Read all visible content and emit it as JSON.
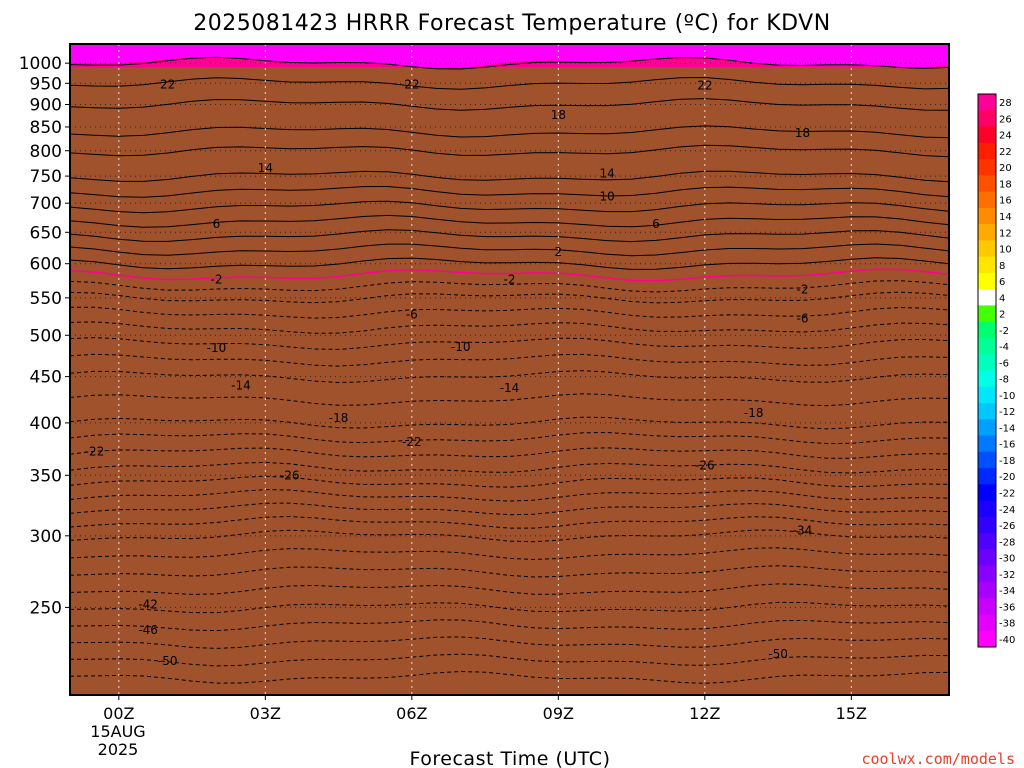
{
  "chart_data": {
    "type": "heatmap",
    "title": "2025081423 HRRR Forecast Temperature (ºC) for KDVN",
    "xlabel": "Forecast Time (UTC)",
    "ylabel": "",
    "x_ticks": [
      {
        "label": "00Z",
        "hour": 0
      },
      {
        "label": "03Z",
        "hour": 3
      },
      {
        "label": "06Z",
        "hour": 6
      },
      {
        "label": "09Z",
        "hour": 9
      },
      {
        "label": "12Z",
        "hour": 12
      },
      {
        "label": "15Z",
        "hour": 15
      }
    ],
    "date_lines": [
      "15AUG",
      "2025"
    ],
    "xlim": [
      -1,
      17
    ],
    "y_ticks": [
      250,
      300,
      350,
      400,
      450,
      500,
      550,
      600,
      650,
      700,
      750,
      800,
      850,
      900,
      950,
      1000
    ],
    "ylim": [
      1050,
      200
    ],
    "surface_pressure": 990,
    "colorbar_labels": [
      "28",
      "26",
      "24",
      "22",
      "20",
      "18",
      "16",
      "14",
      "12",
      "10",
      "8",
      "6",
      "4",
      "2",
      "-2",
      "-4",
      "-6",
      "-8",
      "-10",
      "-12",
      "-14",
      "-16",
      "-18",
      "-20",
      "-22",
      "-24",
      "-26",
      "-28",
      "-30",
      "-32",
      "-34",
      "-36",
      "-38",
      "-40"
    ],
    "colors": {
      "bands": [
        "#ff00ff",
        "#e200ff",
        "#c800ff",
        "#a800ff",
        "#8a00ff",
        "#6c00ff",
        "#5000ff",
        "#3200ff",
        "#1c00ff",
        "#0000ff",
        "#0028ff",
        "#0050ff",
        "#0078ff",
        "#00a0ff",
        "#00c8ff",
        "#00e6ff",
        "#00ffe6",
        "#00ffbe",
        "#00ff96",
        "#00ff6e",
        "#44ff00",
        "#ffffff",
        "#ffff00",
        "#ffe600",
        "#ffc800",
        "#ffaa00",
        "#ff8c00",
        "#ff6e00",
        "#ff5000",
        "#ff3200",
        "#ff1e00",
        "#ff0028",
        "#ff0064",
        "#ff0096"
      ],
      "ground": "#a0522d",
      "freezing_line": "#ff0090",
      "contour": "#000000"
    },
    "temperature_profile": [
      {
        "p": 1000,
        "t": 24
      },
      {
        "p": 950,
        "t": 22
      },
      {
        "p": 900,
        "t": 20
      },
      {
        "p": 850,
        "t": 18.5
      },
      {
        "p": 800,
        "t": 16
      },
      {
        "p": 750,
        "t": 14
      },
      {
        "p": 700,
        "t": 10.5
      },
      {
        "p": 650,
        "t": 6.5
      },
      {
        "p": 600,
        "t": 2
      },
      {
        "p": 550,
        "t": -4
      },
      {
        "p": 500,
        "t": -9
      },
      {
        "p": 450,
        "t": -14
      },
      {
        "p": 400,
        "t": -18
      },
      {
        "p": 350,
        "t": -25
      },
      {
        "p": 300,
        "t": -34
      },
      {
        "p": 250,
        "t": -42
      },
      {
        "p": 200,
        "t": -52
      }
    ],
    "contour_labels": [
      {
        "text": "-50",
        "hour": 1.0,
        "p": 218
      },
      {
        "text": "-50",
        "hour": 13.5,
        "p": 222
      },
      {
        "text": "-46",
        "hour": 0.6,
        "p": 236
      },
      {
        "text": "-42",
        "hour": 0.6,
        "p": 252
      },
      {
        "text": "-34",
        "hour": 14.0,
        "p": 304
      },
      {
        "text": "-26",
        "hour": 3.5,
        "p": 350
      },
      {
        "text": "-26",
        "hour": 12.0,
        "p": 359
      },
      {
        "text": "-22",
        "hour": -0.5,
        "p": 372
      },
      {
        "text": "-22",
        "hour": 6.0,
        "p": 381
      },
      {
        "text": "-18",
        "hour": 4.5,
        "p": 405
      },
      {
        "text": "-18",
        "hour": 13.0,
        "p": 410
      },
      {
        "text": "-14",
        "hour": 2.5,
        "p": 440
      },
      {
        "text": "-14",
        "hour": 8.0,
        "p": 437
      },
      {
        "text": "-10",
        "hour": 2.0,
        "p": 484
      },
      {
        "text": "-10",
        "hour": 7.0,
        "p": 485
      },
      {
        "text": "-6",
        "hour": 6.0,
        "p": 527
      },
      {
        "text": "-6",
        "hour": 14.0,
        "p": 522
      },
      {
        "text": "-2",
        "hour": 2.0,
        "p": 576
      },
      {
        "text": "-2",
        "hour": 8.0,
        "p": 576
      },
      {
        "text": "-2",
        "hour": 14.0,
        "p": 562
      },
      {
        "text": "2",
        "hour": 9.0,
        "p": 618
      },
      {
        "text": "6",
        "hour": 2.0,
        "p": 664
      },
      {
        "text": "6",
        "hour": 11.0,
        "p": 664
      },
      {
        "text": "10",
        "hour": 10.0,
        "p": 712
      },
      {
        "text": "14",
        "hour": 3.0,
        "p": 766
      },
      {
        "text": "14",
        "hour": 10.0,
        "p": 755
      },
      {
        "text": "18",
        "hour": 9.0,
        "p": 876
      },
      {
        "text": "18",
        "hour": 14.0,
        "p": 837
      },
      {
        "text": "22",
        "hour": 1.0,
        "p": 947
      },
      {
        "text": "22",
        "hour": 6.0,
        "p": 947
      },
      {
        "text": "22",
        "hour": 12.0,
        "p": 945
      }
    ]
  },
  "watermark": "coolwx.com/models"
}
